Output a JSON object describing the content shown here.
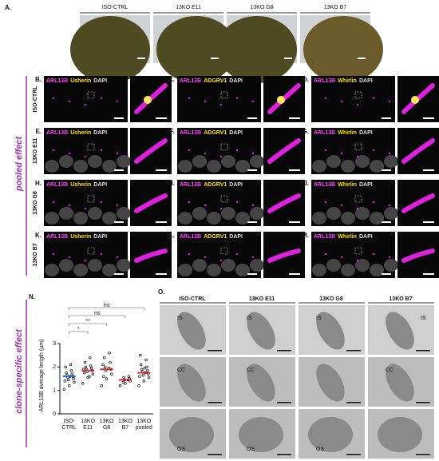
{
  "panel_a": {
    "label": "A.",
    "columns": [
      "ISO-CTRL",
      "13KO E11",
      "13KO G8",
      "13KO B7"
    ]
  },
  "stains": {
    "marker": "ARL13B",
    "counter": "DAPI",
    "targets": [
      "Usherin",
      "ADGRV1",
      "Whirlin"
    ]
  },
  "rows": [
    {
      "label": "ISO-CTRL",
      "panels": [
        "B.",
        "C.",
        "D."
      ]
    },
    {
      "label": "13KO E11",
      "panels": [
        "E.",
        "F.",
        "G."
      ]
    },
    {
      "label": "13KO G8",
      "panels": [
        "H.",
        "I.",
        "J."
      ]
    },
    {
      "label": "13KO B7",
      "panels": [
        "K.",
        "L.",
        "M."
      ]
    }
  ],
  "side_labels": [
    "pooled effect",
    "clone-specific effect"
  ],
  "chart_data": {
    "type": "strip",
    "label": "N.",
    "y_label": "ARL13B average length (µm)",
    "categories": [
      [
        "ISO-",
        "CTRL"
      ],
      [
        "13KO",
        "E11"
      ],
      [
        "13KO",
        "G8"
      ],
      [
        "13KO",
        "B7"
      ],
      [
        "13KO",
        "pooled"
      ]
    ],
    "points": [
      [
        1.05,
        1.2,
        1.35,
        1.45,
        1.5,
        1.55,
        1.6,
        1.65,
        1.7,
        1.75,
        1.85,
        2.0,
        2.1,
        1.4,
        1.6
      ],
      [
        1.3,
        1.55,
        1.7,
        1.8,
        1.85,
        1.9,
        1.95,
        2.0,
        2.05,
        2.2,
        2.4,
        1.75,
        1.6,
        1.9
      ],
      [
        1.2,
        1.5,
        1.7,
        1.85,
        1.9,
        2.0,
        2.2,
        2.4,
        2.6,
        1.6,
        1.95,
        2.1
      ],
      [
        1.2,
        1.3,
        1.4,
        1.45,
        1.5,
        1.55,
        1.6,
        1.35,
        1.45
      ],
      [
        1.2,
        1.4,
        1.55,
        1.65,
        1.7,
        1.8,
        1.85,
        1.9,
        2.0,
        2.1,
        2.3,
        2.5,
        1.75,
        1.6,
        1.95
      ]
    ],
    "means": [
      1.6,
      1.85,
      1.9,
      1.45,
      1.75
    ],
    "mean_colors": [
      "#1f6fd1",
      "#e0262b",
      "#e0262b",
      "#e0262b",
      "#e0262b"
    ],
    "point_color": "#111111",
    "ylim": [
      0,
      3
    ],
    "yticks": [
      0,
      1,
      2,
      3
    ],
    "significance": [
      {
        "pair": [
          "ISO-CTRL",
          "13KO pooled"
        ],
        "label": "ns"
      },
      {
        "pair": [
          "ISO-CTRL",
          "13KO B7"
        ],
        "label": "ns"
      },
      {
        "pair": [
          "ISO-CTRL",
          "13KO G8"
        ],
        "label": "**"
      },
      {
        "pair": [
          "ISO-CTRL",
          "13KO E11"
        ],
        "label": "*"
      }
    ]
  },
  "panel_o": {
    "label": "O.",
    "columns": [
      "ISO-CTRL",
      "13KO E11",
      "13KO G8",
      "13KO B7"
    ],
    "rows": [
      [
        "IS",
        "IS",
        "IS",
        "IS"
      ],
      [
        "CC",
        "CC",
        null,
        "CC"
      ],
      [
        "OS",
        "OS",
        "OS",
        null
      ]
    ]
  }
}
